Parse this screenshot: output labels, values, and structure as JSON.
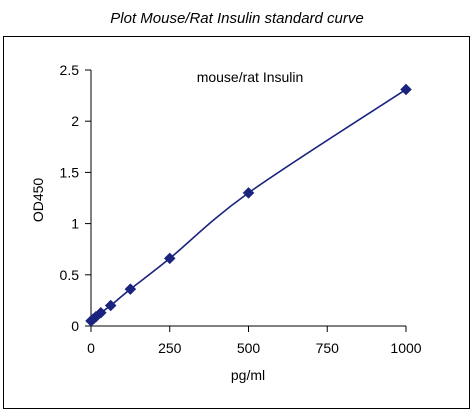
{
  "page_title": "Plot Mouse/Rat Insulin standard curve",
  "chart_data": {
    "type": "scatter",
    "title": "mouse/rat  Insulin",
    "xlabel": "pg/ml",
    "ylabel": "OD450",
    "xlim": [
      0,
      1000
    ],
    "ylim": [
      0,
      2.5
    ],
    "x_ticks": [
      0,
      250,
      500,
      750,
      1000
    ],
    "y_ticks": [
      0,
      0.5,
      1,
      1.5,
      2,
      2.5
    ],
    "x_tick_labels": [
      "0",
      "250",
      "500",
      "750",
      "1000"
    ],
    "y_tick_labels": [
      "0",
      "0.5",
      "1",
      "1.5",
      "2",
      "2.5"
    ],
    "grid": false,
    "legend": "none",
    "trendline": "smooth",
    "marker": "diamond",
    "series": [
      {
        "color": "#1a237e",
        "x": [
          0,
          7.8,
          15.6,
          31.25,
          62.5,
          125,
          250,
          500,
          1000
        ],
        "y": [
          0.05,
          0.07,
          0.09,
          0.13,
          0.2,
          0.36,
          0.66,
          1.3,
          2.31
        ]
      }
    ]
  }
}
